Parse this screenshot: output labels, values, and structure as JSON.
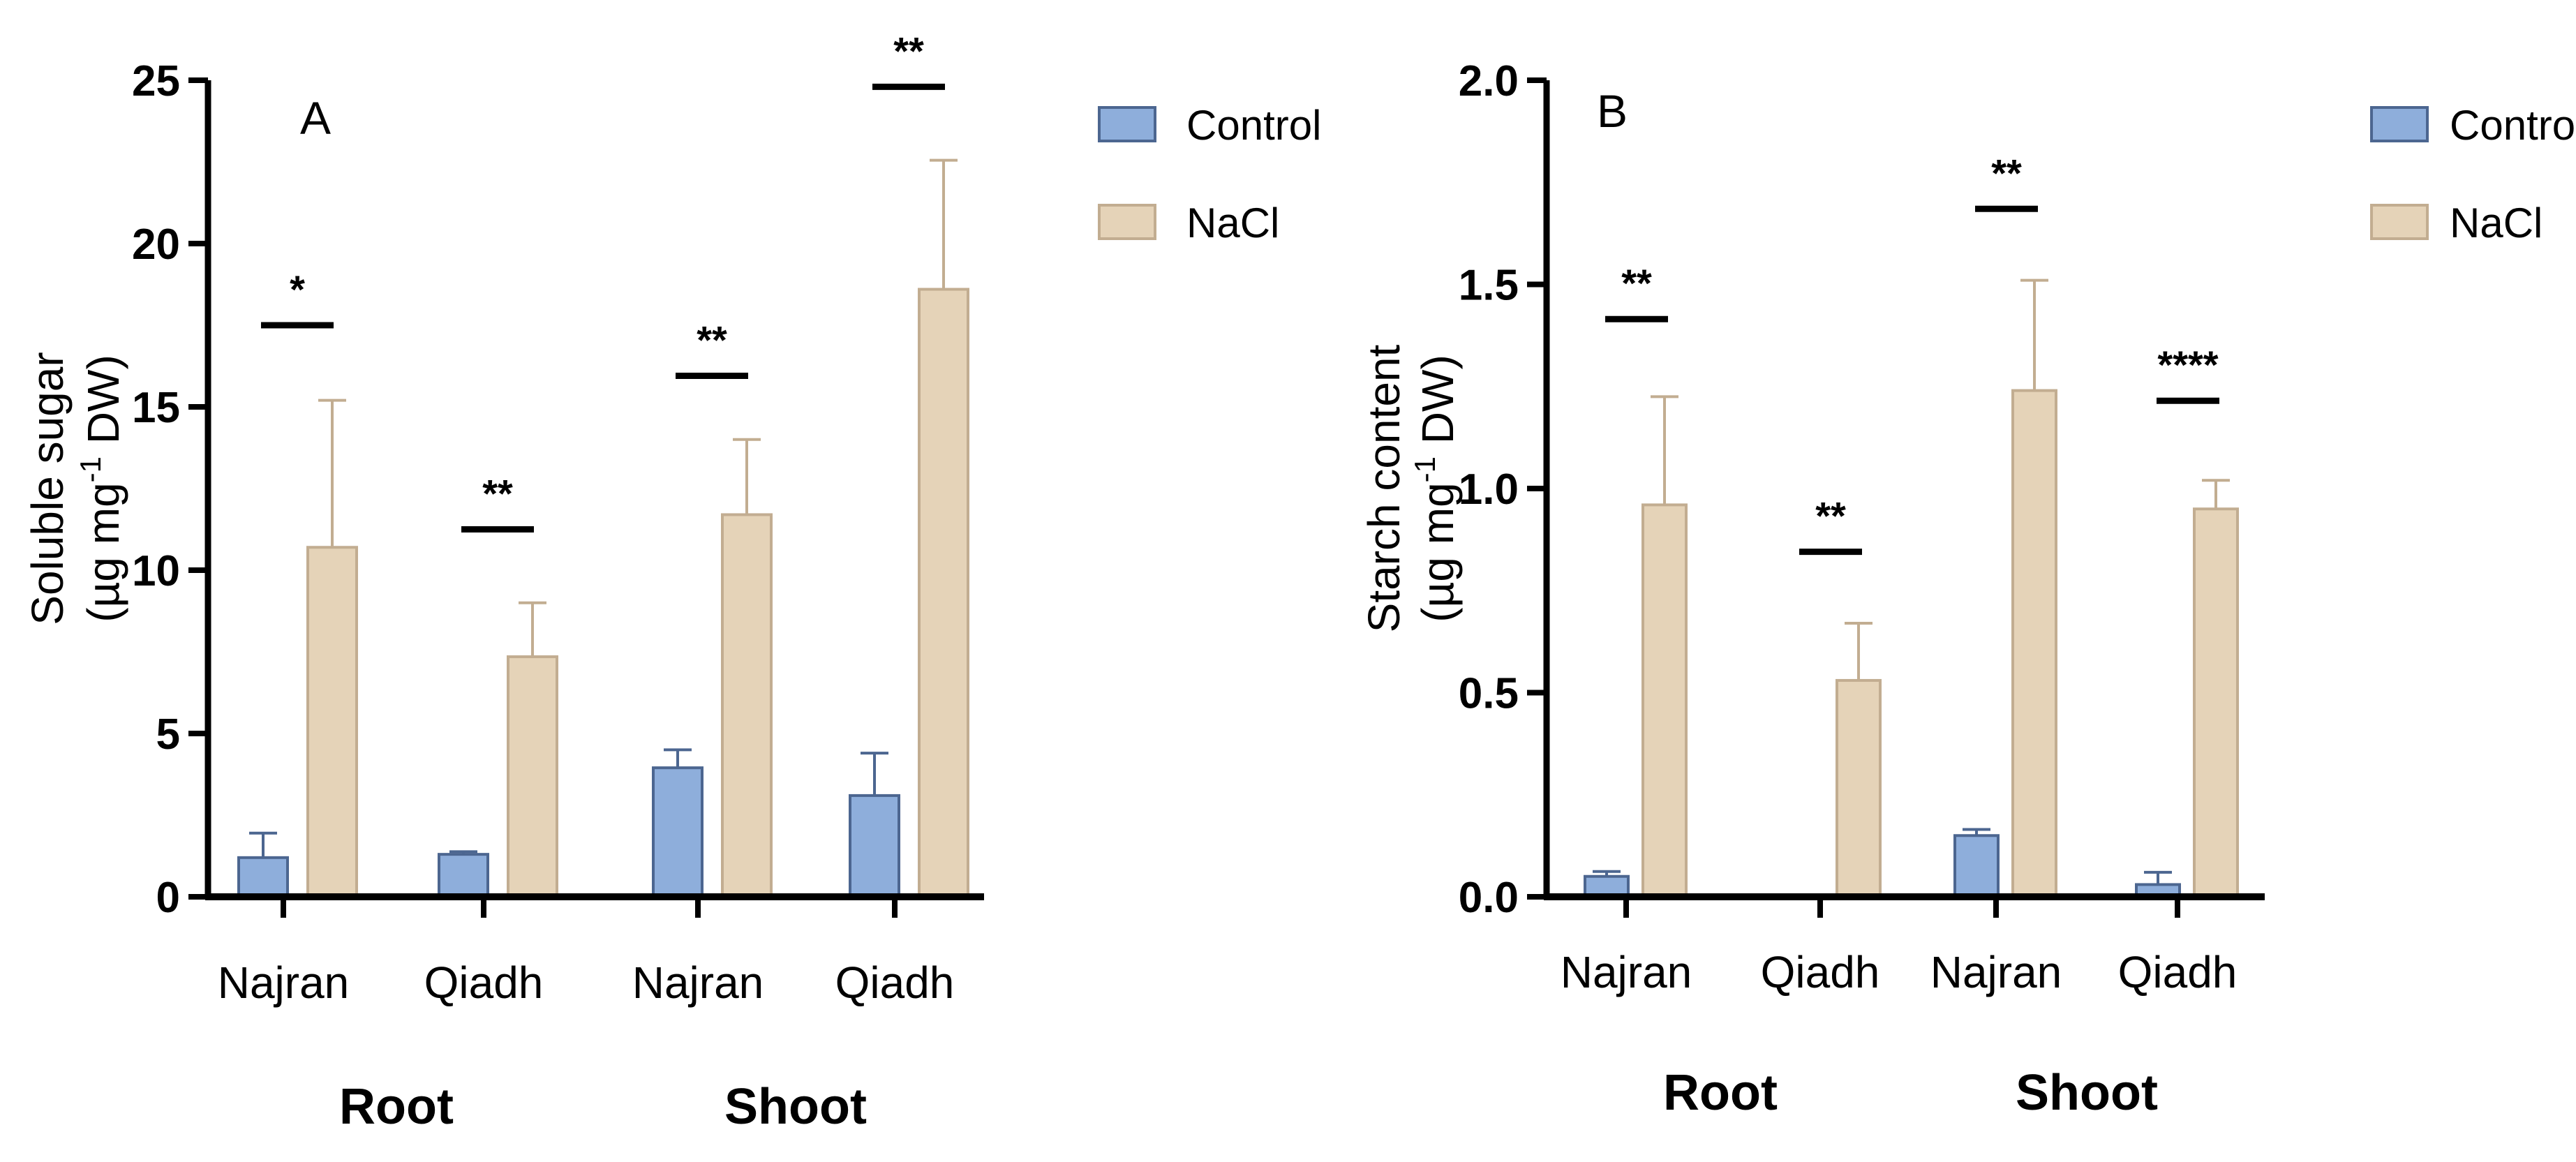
{
  "chart_data": [
    {
      "panel_label": "A",
      "type": "bar",
      "ylabel_line1": "Soluble sugar",
      "ylabel_line2": "(µg mg",
      "ylabel_sup": "-1",
      "ylabel_line2_end": " DW)",
      "ylim": [
        0,
        25
      ],
      "yticks": [
        0,
        5,
        10,
        15,
        20,
        25
      ],
      "categories": [
        "Najran",
        "Qiadh",
        "Najran",
        "Qiadh"
      ],
      "groups": [
        {
          "label": "Root",
          "categories": [
            0,
            1
          ]
        },
        {
          "label": "Shoot",
          "categories": [
            2,
            3
          ]
        }
      ],
      "series": [
        {
          "name": "Control",
          "color": "#8eaedb",
          "values": [
            1.2,
            1.3,
            3.95,
            3.1
          ],
          "errors": [
            0.75,
            0.08,
            0.55,
            1.3
          ]
        },
        {
          "name": "NaCl",
          "color": "#e5d3b8",
          "values": [
            10.7,
            7.35,
            11.7,
            18.6
          ],
          "errors": [
            4.5,
            1.65,
            2.3,
            3.95
          ]
        }
      ],
      "significance": [
        {
          "label": "*",
          "y": 17.5
        },
        {
          "label": "**",
          "y": 11.25
        },
        {
          "label": "**",
          "y": 15.95
        },
        {
          "label": "**",
          "y": 24.8
        }
      ],
      "legend": [
        "Control",
        "NaCl"
      ]
    },
    {
      "panel_label": "B",
      "type": "bar",
      "ylabel_line1": "Starch content",
      "ylabel_line2": "(µg mg",
      "ylabel_sup": "-1",
      "ylabel_line2_end": " DW)",
      "ylim": [
        0,
        2.0
      ],
      "yticks": [
        0.0,
        0.5,
        1.0,
        1.5,
        2.0
      ],
      "ytick_labels": [
        "0.0",
        "0.5",
        "1.0",
        "1.5",
        "2.0"
      ],
      "categories": [
        "Najran",
        "Qiadh",
        "Najran",
        "Qiadh"
      ],
      "groups": [
        {
          "label": "Root",
          "categories": [
            0,
            1
          ]
        },
        {
          "label": "Shoot",
          "categories": [
            2,
            3
          ]
        }
      ],
      "series": [
        {
          "name": "Control",
          "color": "#8eaedb",
          "values": [
            0.05,
            0.0,
            0.15,
            0.03
          ],
          "errors": [
            0.012,
            0,
            0.015,
            0.03
          ]
        },
        {
          "name": "NaCl",
          "color": "#e5d3b8",
          "values": [
            0.96,
            0.53,
            1.24,
            0.95
          ],
          "errors": [
            0.265,
            0.14,
            0.27,
            0.07
          ]
        }
      ],
      "significance": [
        {
          "label": "**",
          "y": 1.415
        },
        {
          "label": "**",
          "y": 0.845
        },
        {
          "label": "**",
          "y": 1.685
        },
        {
          "label": "****",
          "y": 1.215
        }
      ],
      "legend": [
        "Control",
        "NaCl"
      ]
    }
  ]
}
